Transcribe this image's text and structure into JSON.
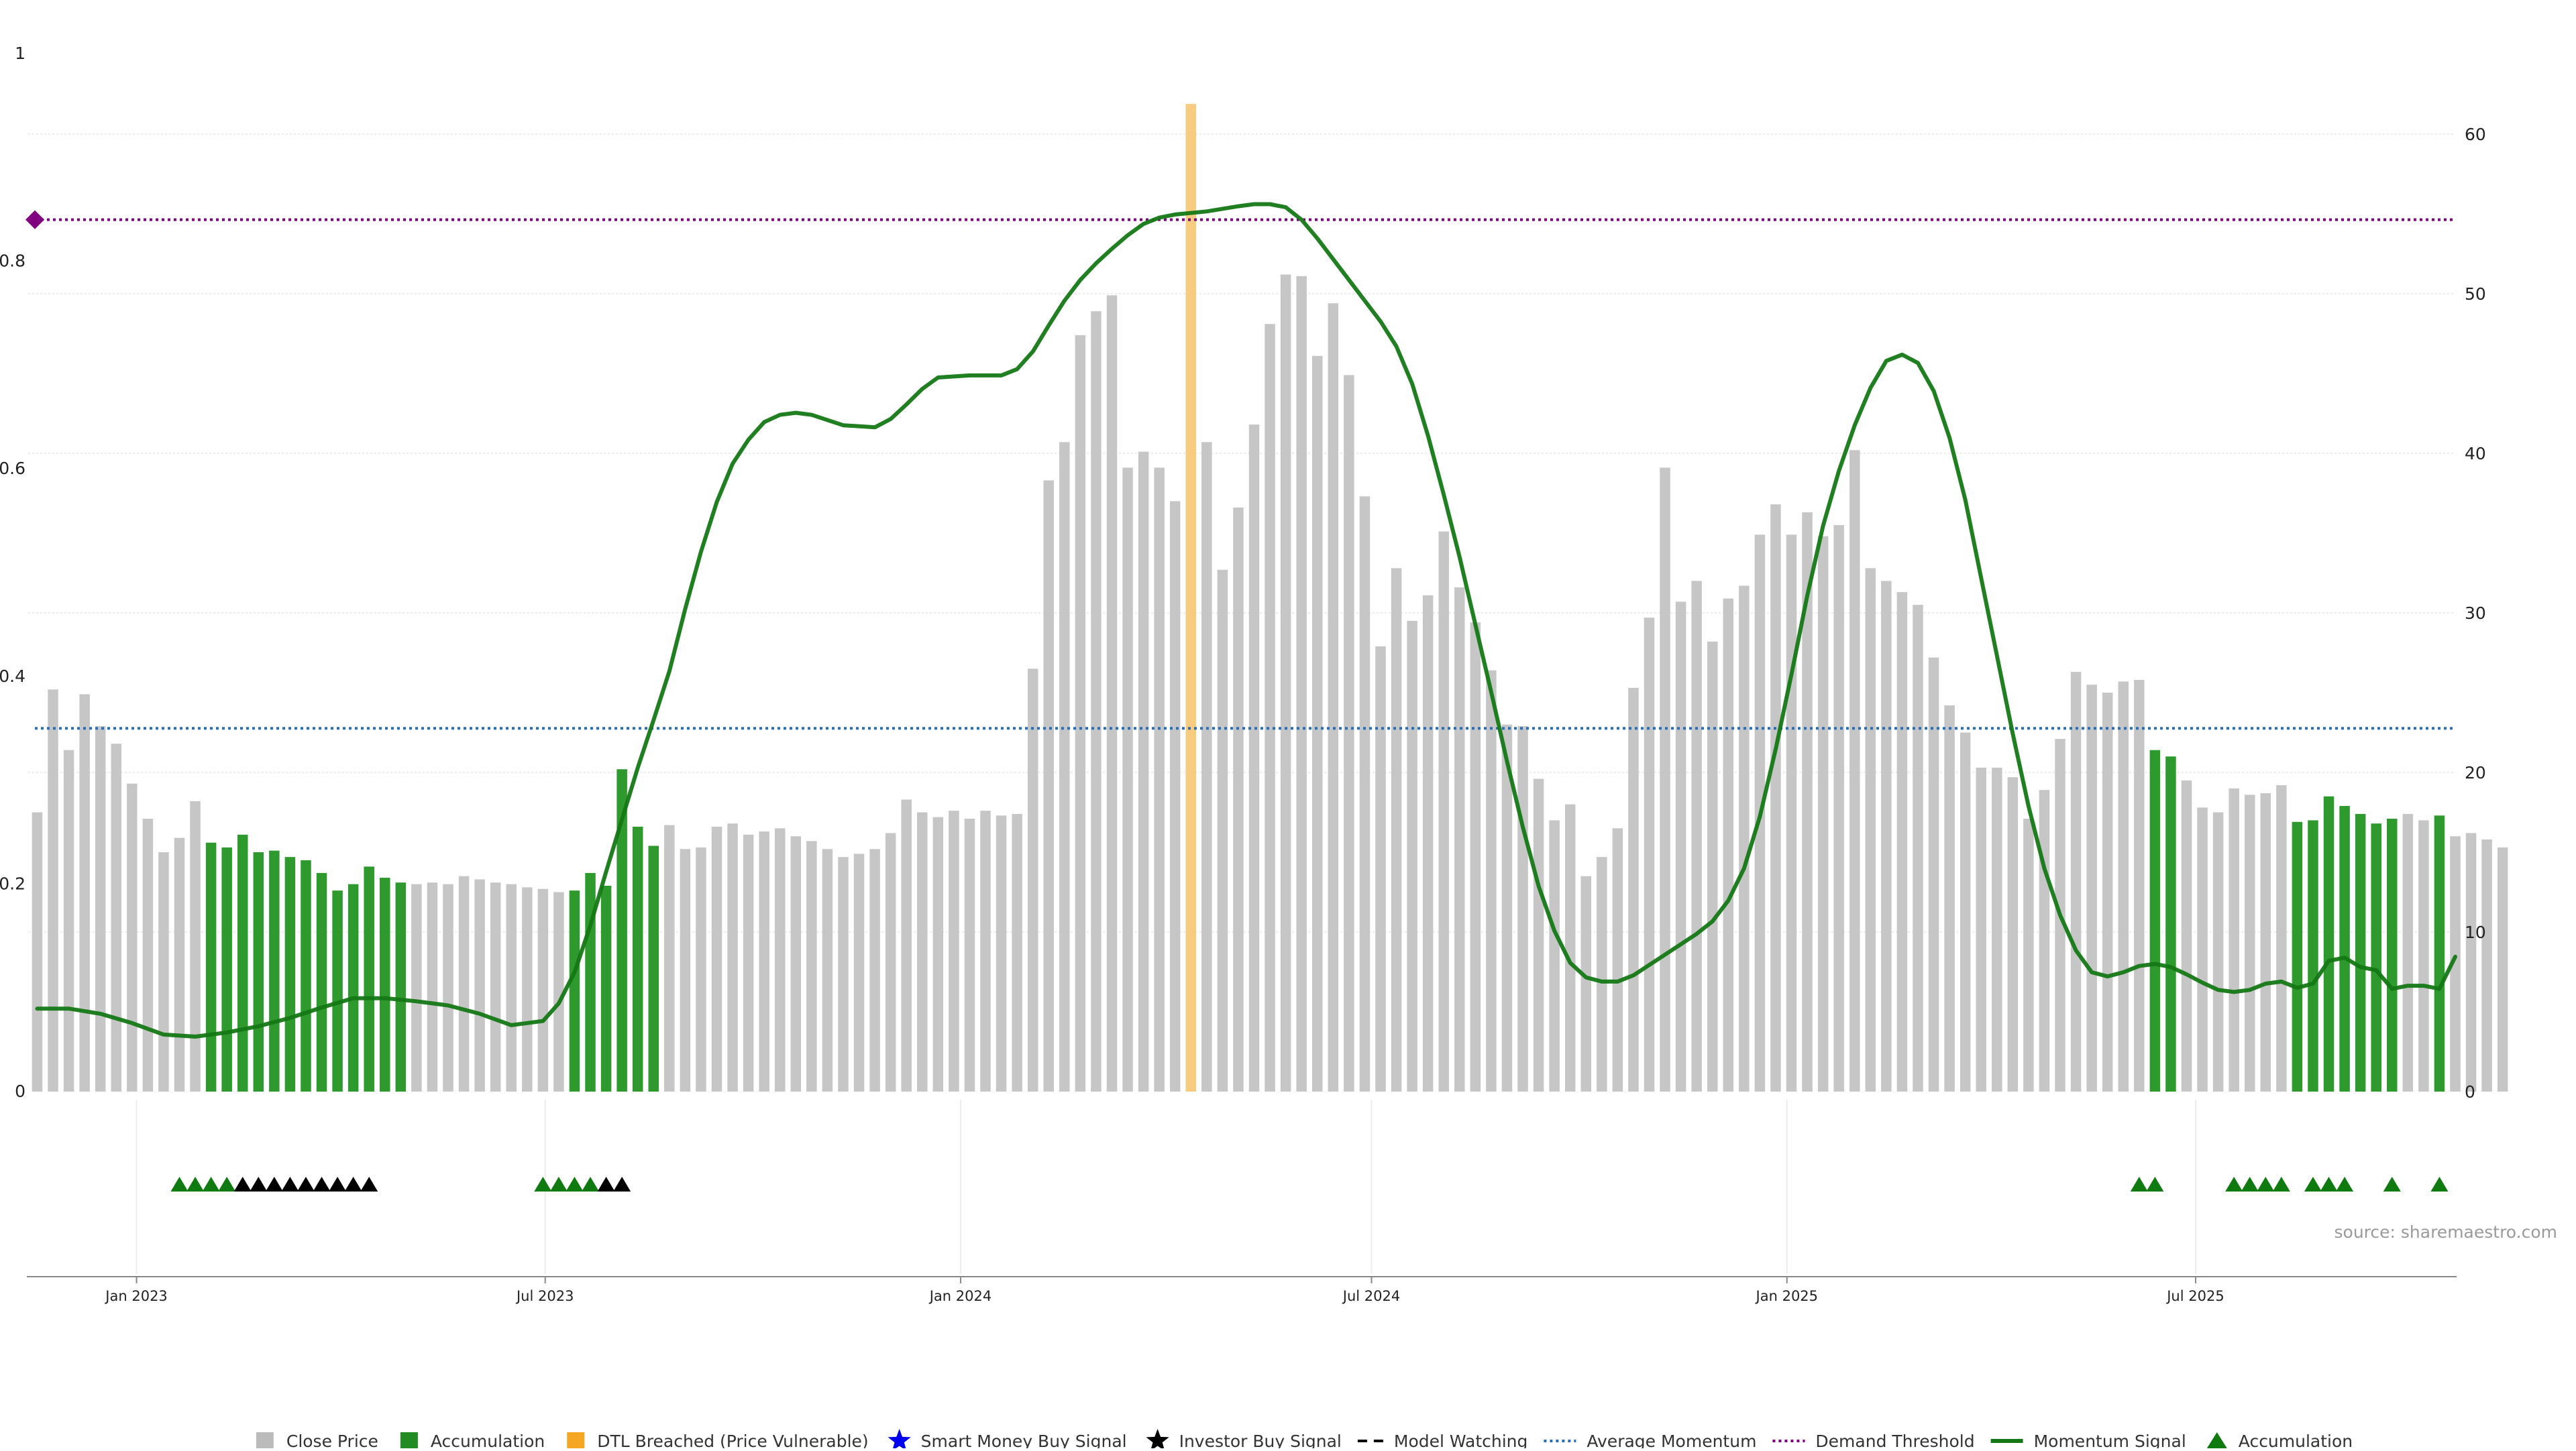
{
  "chart_data": {
    "type": "bar",
    "left_axis": {
      "ticks": [
        0,
        0.2,
        0.4,
        0.6,
        0.8,
        1
      ],
      "tick_labels": [
        "0",
        "0.2",
        "0.4",
        "0.6",
        "0.8",
        "1"
      ]
    },
    "right_axis": {
      "ticks": [
        0,
        10,
        20,
        30,
        40,
        50,
        60
      ],
      "tick_labels": [
        "0",
        "10",
        "20",
        "30",
        "40",
        "50",
        "60"
      ]
    },
    "x_range": [
      "2022-11-14",
      "2025-10-24"
    ],
    "x_ticks": [
      {
        "date": "2023-01-01",
        "label": "Jan 2023"
      },
      {
        "date": "2023-07-01",
        "label": "Jul 2023"
      },
      {
        "date": "2024-01-01",
        "label": "Jan 2024"
      },
      {
        "date": "2024-07-01",
        "label": "Jul 2024"
      },
      {
        "date": "2025-01-01",
        "label": "Jan 2025"
      },
      {
        "date": "2025-07-01",
        "label": "Jul 2025"
      }
    ],
    "grid": true,
    "bars": {
      "first_date": "2022-11-18",
      "step_days": 7,
      "axis": "right",
      "values": [
        17.5,
        25.2,
        21.4,
        24.9,
        22.9,
        21.8,
        19.3,
        17.1,
        15.0,
        15.9,
        18.2,
        15.6,
        15.3,
        16.1,
        15.0,
        15.1,
        14.7,
        14.5,
        13.7,
        12.6,
        13.0,
        14.1,
        13.4,
        13.1,
        13.0,
        13.1,
        13.0,
        13.5,
        13.3,
        13.1,
        13.0,
        12.8,
        12.7,
        12.5,
        12.6,
        13.7,
        12.9,
        20.2,
        16.6,
        15.4,
        16.7,
        15.2,
        15.3,
        16.6,
        16.8,
        16.1,
        16.3,
        16.5,
        16.0,
        15.7,
        15.2,
        14.7,
        14.9,
        15.2,
        16.2,
        18.3,
        17.5,
        17.2,
        17.6,
        17.1,
        17.6,
        17.3,
        17.4,
        26.5,
        38.3,
        40.7,
        47.4,
        48.9,
        49.9,
        39.1,
        40.1,
        39.1,
        37.0,
        62.0,
        40.7,
        32.7,
        36.6,
        41.8,
        48.1,
        51.2,
        51.1,
        46.1,
        49.4,
        44.9,
        37.3,
        27.9,
        32.8,
        29.5,
        31.1,
        35.1,
        31.6,
        29.4,
        26.4,
        23.0,
        22.9,
        19.6,
        17.0,
        18.0,
        13.5,
        14.7,
        16.5,
        25.3,
        29.7,
        39.1,
        30.7,
        32.0,
        28.2,
        30.9,
        31.7,
        34.9,
        36.8,
        34.9,
        36.3,
        34.8,
        35.5,
        40.2,
        32.8,
        32.0,
        31.3,
        30.5,
        27.2,
        24.2,
        22.5,
        20.3,
        20.3,
        19.7,
        17.1,
        18.9,
        22.1,
        26.3,
        25.5,
        25.0,
        25.7,
        25.8,
        21.4,
        21.0,
        19.5,
        17.8,
        17.5,
        19.0,
        18.6,
        18.7,
        19.2,
        16.9,
        17.0,
        18.5,
        17.9,
        17.4,
        16.8,
        17.1,
        17.4,
        17.0,
        17.3,
        16.0,
        16.2,
        15.8,
        15.3
      ],
      "accumulation_indices": [
        11,
        12,
        13,
        14,
        15,
        16,
        17,
        18,
        19,
        20,
        21,
        22,
        23,
        34,
        35,
        36,
        37,
        38,
        39,
        134,
        135,
        143,
        144,
        145,
        146,
        147,
        148,
        149,
        152
      ],
      "dtl_breached_indices": [
        73
      ]
    },
    "average_momentum": 0.35,
    "demand_threshold": 0.84,
    "momentum_signal": {
      "axis": "left",
      "points": [
        [
          "2022-11-18",
          0.08
        ],
        [
          "2022-12-02",
          0.08
        ],
        [
          "2022-12-16",
          0.075
        ],
        [
          "2022-12-30",
          0.066
        ],
        [
          "2023-01-13",
          0.055
        ],
        [
          "2023-01-27",
          0.053
        ],
        [
          "2023-02-10",
          0.057
        ],
        [
          "2023-02-24",
          0.063
        ],
        [
          "2023-03-10",
          0.071
        ],
        [
          "2023-03-24",
          0.081
        ],
        [
          "2023-04-07",
          0.09
        ],
        [
          "2023-04-21",
          0.09
        ],
        [
          "2023-05-05",
          0.087
        ],
        [
          "2023-05-19",
          0.083
        ],
        [
          "2023-06-02",
          0.075
        ],
        [
          "2023-06-16",
          0.064
        ],
        [
          "2023-06-30",
          0.068
        ],
        [
          "2023-07-07",
          0.085
        ],
        [
          "2023-07-14",
          0.115
        ],
        [
          "2023-07-21",
          0.16
        ],
        [
          "2023-07-28",
          0.212
        ],
        [
          "2023-08-04",
          0.262
        ],
        [
          "2023-08-11",
          0.312
        ],
        [
          "2023-08-18",
          0.358
        ],
        [
          "2023-08-25",
          0.405
        ],
        [
          "2023-09-01",
          0.465
        ],
        [
          "2023-09-08",
          0.52
        ],
        [
          "2023-09-15",
          0.568
        ],
        [
          "2023-09-22",
          0.605
        ],
        [
          "2023-09-29",
          0.628
        ],
        [
          "2023-10-06",
          0.645
        ],
        [
          "2023-10-13",
          0.652
        ],
        [
          "2023-10-20",
          0.654
        ],
        [
          "2023-10-27",
          0.652
        ],
        [
          "2023-11-10",
          0.642
        ],
        [
          "2023-11-24",
          0.64
        ],
        [
          "2023-12-01",
          0.648
        ],
        [
          "2023-12-08",
          0.662
        ],
        [
          "2023-12-15",
          0.677
        ],
        [
          "2023-12-22",
          0.688
        ],
        [
          "2024-01-05",
          0.69
        ],
        [
          "2024-01-19",
          0.69
        ],
        [
          "2024-01-26",
          0.696
        ],
        [
          "2024-02-02",
          0.713
        ],
        [
          "2024-02-09",
          0.738
        ],
        [
          "2024-02-16",
          0.762
        ],
        [
          "2024-02-23",
          0.782
        ],
        [
          "2024-03-01",
          0.798
        ],
        [
          "2024-03-08",
          0.812
        ],
        [
          "2024-03-15",
          0.825
        ],
        [
          "2024-03-22",
          0.836
        ],
        [
          "2024-03-29",
          0.842
        ],
        [
          "2024-04-05",
          0.845
        ],
        [
          "2024-04-19",
          0.848
        ],
        [
          "2024-05-03",
          0.853
        ],
        [
          "2024-05-10",
          0.855
        ],
        [
          "2024-05-17",
          0.855
        ],
        [
          "2024-05-24",
          0.852
        ],
        [
          "2024-05-31",
          0.84
        ],
        [
          "2024-06-07",
          0.822
        ],
        [
          "2024-06-14",
          0.802
        ],
        [
          "2024-06-21",
          0.782
        ],
        [
          "2024-06-28",
          0.762
        ],
        [
          "2024-07-05",
          0.742
        ],
        [
          "2024-07-12",
          0.718
        ],
        [
          "2024-07-19",
          0.682
        ],
        [
          "2024-07-26",
          0.632
        ],
        [
          "2024-08-02",
          0.575
        ],
        [
          "2024-08-09",
          0.515
        ],
        [
          "2024-08-16",
          0.45
        ],
        [
          "2024-08-23",
          0.385
        ],
        [
          "2024-08-30",
          0.318
        ],
        [
          "2024-09-06",
          0.255
        ],
        [
          "2024-09-13",
          0.198
        ],
        [
          "2024-09-20",
          0.155
        ],
        [
          "2024-09-27",
          0.124
        ],
        [
          "2024-10-04",
          0.11
        ],
        [
          "2024-10-11",
          0.106
        ],
        [
          "2024-10-18",
          0.106
        ],
        [
          "2024-10-25",
          0.112
        ],
        [
          "2024-11-01",
          0.122
        ],
        [
          "2024-11-08",
          0.132
        ],
        [
          "2024-11-15",
          0.142
        ],
        [
          "2024-11-22",
          0.152
        ],
        [
          "2024-11-29",
          0.164
        ],
        [
          "2024-12-06",
          0.184
        ],
        [
          "2024-12-13",
          0.215
        ],
        [
          "2024-12-20",
          0.265
        ],
        [
          "2024-12-27",
          0.33
        ],
        [
          "2025-01-03",
          0.402
        ],
        [
          "2025-01-10",
          0.478
        ],
        [
          "2025-01-17",
          0.545
        ],
        [
          "2025-01-24",
          0.598
        ],
        [
          "2025-01-31",
          0.642
        ],
        [
          "2025-02-07",
          0.678
        ],
        [
          "2025-02-14",
          0.704
        ],
        [
          "2025-02-21",
          0.71
        ],
        [
          "2025-02-28",
          0.702
        ],
        [
          "2025-03-07",
          0.675
        ],
        [
          "2025-03-14",
          0.63
        ],
        [
          "2025-03-21",
          0.57
        ],
        [
          "2025-03-28",
          0.495
        ],
        [
          "2025-04-04",
          0.42
        ],
        [
          "2025-04-11",
          0.345
        ],
        [
          "2025-04-18",
          0.275
        ],
        [
          "2025-04-25",
          0.215
        ],
        [
          "2025-05-02",
          0.17
        ],
        [
          "2025-05-09",
          0.136
        ],
        [
          "2025-05-16",
          0.115
        ],
        [
          "2025-05-23",
          0.111
        ],
        [
          "2025-05-30",
          0.115
        ],
        [
          "2025-06-06",
          0.121
        ],
        [
          "2025-06-13",
          0.123
        ],
        [
          "2025-06-20",
          0.12
        ],
        [
          "2025-06-27",
          0.113
        ],
        [
          "2025-07-04",
          0.105
        ],
        [
          "2025-07-11",
          0.098
        ],
        [
          "2025-07-18",
          0.096
        ],
        [
          "2025-07-25",
          0.098
        ],
        [
          "2025-08-01",
          0.104
        ],
        [
          "2025-08-08",
          0.106
        ],
        [
          "2025-08-15",
          0.1
        ],
        [
          "2025-08-22",
          0.104
        ],
        [
          "2025-08-29",
          0.126
        ],
        [
          "2025-09-05",
          0.129
        ],
        [
          "2025-09-12",
          0.12
        ],
        [
          "2025-09-19",
          0.117
        ],
        [
          "2025-09-26",
          0.099
        ],
        [
          "2025-10-03",
          0.102
        ],
        [
          "2025-10-10",
          0.102
        ],
        [
          "2025-10-17",
          0.099
        ],
        [
          "2025-10-24",
          0.13
        ]
      ]
    },
    "signal_markers": {
      "green": [
        "2023-01-20",
        "2023-01-27",
        "2023-02-03",
        "2023-02-10",
        "2023-06-30",
        "2023-07-07",
        "2023-07-14",
        "2023-07-21",
        "2025-06-06",
        "2025-06-13",
        "2025-07-18",
        "2025-07-25",
        "2025-08-01",
        "2025-08-08",
        "2025-08-22",
        "2025-08-29",
        "2025-09-05",
        "2025-09-26",
        "2025-10-17"
      ],
      "black": [
        "2023-02-17",
        "2023-02-24",
        "2023-03-03",
        "2023-03-10",
        "2023-03-17",
        "2023-03-24",
        "2023-03-31",
        "2023-04-07",
        "2023-04-14",
        "2023-07-28",
        "2023-08-04"
      ]
    },
    "source": "source: sharemaestro.com",
    "legend": {
      "items": [
        {
          "label": "Close Price",
          "color": "#bbbbbb",
          "symbol": "square"
        },
        {
          "label": "Accumulation",
          "color": "#228b22",
          "symbol": "square"
        },
        {
          "label": "DTL Breached (Price Vulnerable)",
          "color": "#f5a623",
          "symbol": "square"
        },
        {
          "label": "Smart Money Buy Signal",
          "color": "#0000ee",
          "symbol": "star"
        },
        {
          "label": "Investor Buy Signal",
          "color": "#000000",
          "symbol": "star"
        },
        {
          "label": "Model Watching",
          "color": "#000000",
          "symbol": "dash"
        },
        {
          "label": "Average Momentum",
          "color": "#2a6fb5",
          "symbol": "dotted"
        },
        {
          "label": "Demand Threshold",
          "color": "#800080",
          "symbol": "dotted"
        },
        {
          "label": "Momentum Signal",
          "color": "#147814",
          "symbol": "line"
        },
        {
          "label": "Accumulation",
          "color": "#0f7a0f",
          "symbol": "triangle"
        }
      ]
    },
    "colors": {
      "close_price": "#c6c6c6",
      "accumulation": "#2e9a2e",
      "dtl": "#f8cc80",
      "momentum": "#147814",
      "average_momentum": "#2a6fb5",
      "demand_threshold": "#800080",
      "marker_green": "#0f7a0f",
      "marker_black": "#000000"
    }
  }
}
